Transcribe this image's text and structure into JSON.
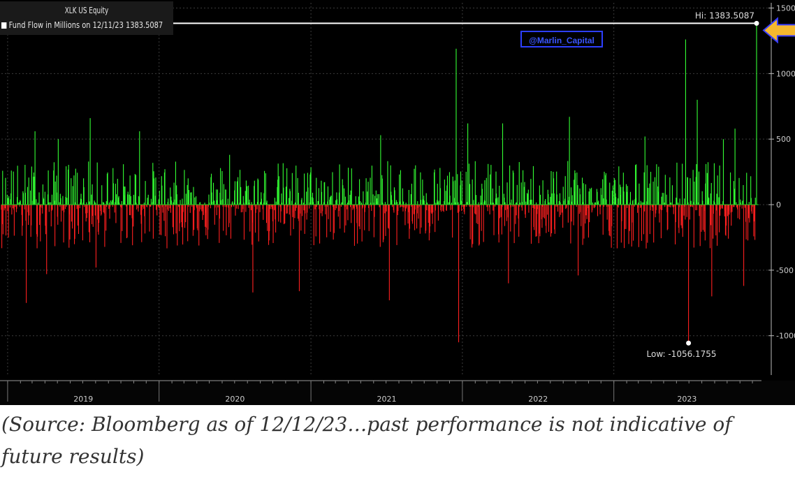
{
  "legend": {
    "title": "XLK US Equity",
    "series_label": "Fund Flow in Millions on 12/11/23 1383.5087"
  },
  "watermark": "@Marlin_Capital",
  "caption": "(Source: Bloomberg as of 12/12/23…past performance is not indicative of future results)",
  "colors": {
    "background": "#000000",
    "positive": "#33ff33",
    "negative": "#ff2020",
    "highlight_line": "#ffffff",
    "arrow": "#f5b82e",
    "arrow_outline": "#3a3fff"
  },
  "icons": {
    "arrow": "left-arrow-icon",
    "swatch": "square-swatch-icon"
  },
  "chart_data": {
    "type": "bar",
    "title": "XLK US Equity",
    "series": [
      {
        "name": "Fund Flow in Millions on 12/11/23 1383.5087",
        "x_start": "2018-12-17",
        "x_end": "2023-12-11",
        "frequency": "daily",
        "peaks": [
          {
            "date": "2019-01-10",
            "value": 260
          },
          {
            "date": "2019-02-15",
            "value": -750
          },
          {
            "date": "2019-03-08",
            "value": 560
          },
          {
            "date": "2019-04-05",
            "value": -530
          },
          {
            "date": "2019-05-03",
            "value": 500
          },
          {
            "date": "2019-07-19",
            "value": 660
          },
          {
            "date": "2019-08-02",
            "value": -480
          },
          {
            "date": "2019-11-15",
            "value": 560
          },
          {
            "date": "2020-06-19",
            "value": 380
          },
          {
            "date": "2020-08-14",
            "value": -670
          },
          {
            "date": "2020-12-04",
            "value": -660
          },
          {
            "date": "2021-06-18",
            "value": 530
          },
          {
            "date": "2021-07-09",
            "value": -730
          },
          {
            "date": "2021-09-10",
            "value": 300
          },
          {
            "date": "2021-12-17",
            "value": 1190
          },
          {
            "date": "2021-12-23",
            "value": -1050
          },
          {
            "date": "2022-01-14",
            "value": 620
          },
          {
            "date": "2022-04-08",
            "value": 620
          },
          {
            "date": "2022-04-22",
            "value": -600
          },
          {
            "date": "2022-09-16",
            "value": 670
          },
          {
            "date": "2022-10-07",
            "value": -540
          },
          {
            "date": "2023-03-17",
            "value": 520
          },
          {
            "date": "2023-06-23",
            "value": 1260
          },
          {
            "date": "2023-06-30",
            "value": -1056.1755
          },
          {
            "date": "2023-07-21",
            "value": 800
          },
          {
            "date": "2023-08-25",
            "value": -700
          },
          {
            "date": "2023-09-22",
            "value": 500
          },
          {
            "date": "2023-10-20",
            "value": 580
          },
          {
            "date": "2023-11-10",
            "value": -620
          },
          {
            "date": "2023-12-11",
            "value": 1383.5087
          }
        ]
      }
    ],
    "x_axis": {
      "tick_labels": [
        "2019",
        "2020",
        "2021",
        "2022",
        "2023"
      ]
    },
    "y_axis": {
      "side": "right",
      "ticks": [
        1500,
        1000,
        500,
        0,
        -500,
        -1000
      ],
      "ylim": [
        -1300,
        1540
      ]
    },
    "annotations": {
      "high": {
        "label": "Hi: 1383.5087",
        "value": 1383.5087,
        "date": "2023-12-11"
      },
      "low": {
        "label": "Low: -1056.1755",
        "value": -1056.1755,
        "date": "2023-06-30"
      }
    },
    "grid": true,
    "legend_position": "top-left"
  }
}
